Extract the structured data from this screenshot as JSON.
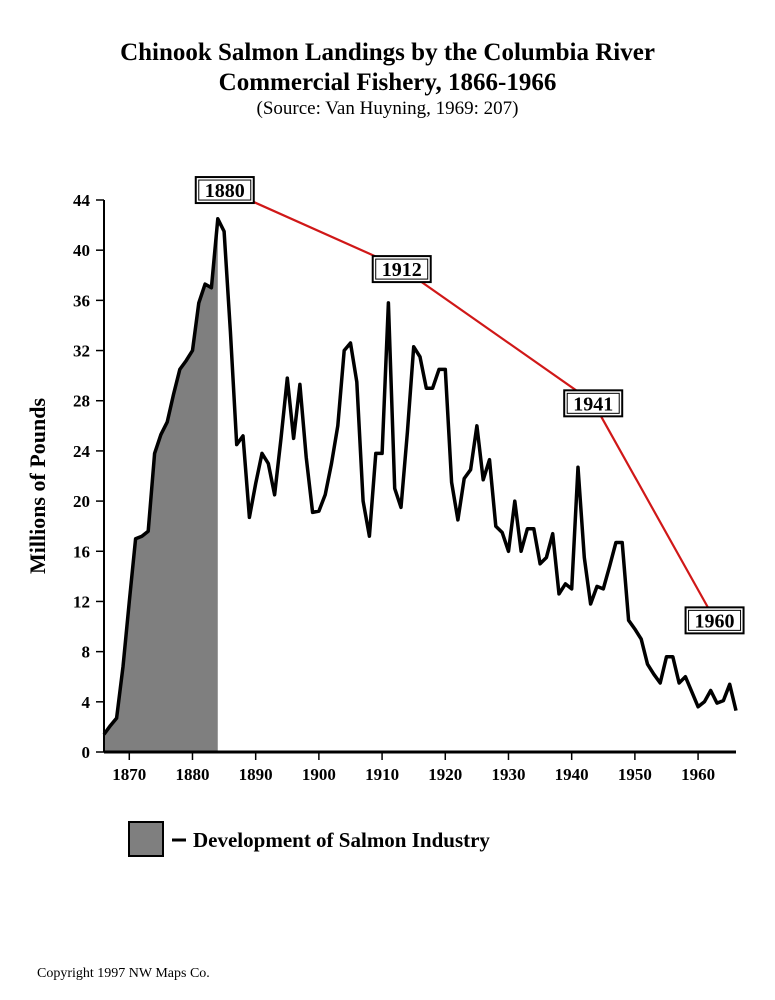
{
  "title_line1": "Chinook Salmon Landings by the Columbia River",
  "title_line2": "Commercial Fishery, 1866-1966",
  "source": "(Source:  Van Huyning, 1969: 207)",
  "copyright": "Copyright 1997 NW Maps Co.",
  "colors": {
    "line": "#000000",
    "shade": "#7f7f7f",
    "trend": "#d01818"
  },
  "chart_data": {
    "type": "line",
    "title": "Chinook Salmon Landings by the Columbia River Commercial Fishery, 1866-1966",
    "xlabel": "",
    "ylabel": "Millions of Pounds",
    "xlim": [
      1866,
      1966
    ],
    "ylim": [
      0,
      44
    ],
    "x_ticks": [
      1870,
      1880,
      1890,
      1900,
      1910,
      1920,
      1930,
      1940,
      1950,
      1960
    ],
    "y_ticks": [
      0,
      4,
      8,
      12,
      16,
      20,
      24,
      28,
      32,
      36,
      40,
      44
    ],
    "grid": false,
    "series": [
      {
        "x": [
          1866,
          1867,
          1868,
          1869,
          1870,
          1871,
          1872,
          1873,
          1874,
          1875,
          1876,
          1877,
          1878,
          1879,
          1880,
          1881,
          1882,
          1883,
          1884,
          1885,
          1886,
          1887,
          1888,
          1889,
          1890,
          1891,
          1892,
          1893,
          1894,
          1895,
          1896,
          1897,
          1898,
          1899,
          1900,
          1901,
          1902,
          1903,
          1904,
          1905,
          1906,
          1907,
          1908,
          1909,
          1910,
          1911,
          1912,
          1913,
          1914,
          1915,
          1916,
          1917,
          1918,
          1919,
          1920,
          1921,
          1922,
          1923,
          1924,
          1925,
          1926,
          1927,
          1928,
          1929,
          1930,
          1931,
          1932,
          1933,
          1934,
          1935,
          1936,
          1937,
          1938,
          1939,
          1940,
          1941,
          1942,
          1943,
          1944,
          1945,
          1946,
          1947,
          1948,
          1949,
          1950,
          1951,
          1952,
          1953,
          1954,
          1955,
          1956,
          1957,
          1958,
          1959,
          1960,
          1961,
          1962,
          1963,
          1964,
          1965,
          1966
        ],
        "values": [
          1.4,
          2.1,
          2.7,
          6.8,
          12,
          17,
          17.2,
          17.6,
          23.8,
          25.3,
          26.3,
          28.5,
          30.5,
          31.2,
          32,
          35.8,
          37.3,
          37,
          42.5,
          41.5,
          33.5,
          24.5,
          25.2,
          18.7,
          21.4,
          23.8,
          23,
          20.5,
          25,
          29.8,
          25,
          29.3,
          23.5,
          19.1,
          19.2,
          20.5,
          23,
          26,
          32,
          32.6,
          29.5,
          20,
          17.2,
          23.8,
          23.8,
          35.8,
          21,
          19.5,
          25.5,
          32.3,
          31.5,
          29,
          29,
          30.5,
          30.5,
          21.5,
          18.5,
          21.8,
          22.5,
          26,
          21.7,
          23.3,
          18,
          17.5,
          16,
          20,
          16,
          17.8,
          17.8,
          15,
          15.5,
          17.4,
          12.6,
          13.4,
          13,
          22.7,
          15.5,
          11.8,
          13.2,
          13,
          14.8,
          16.7,
          16.7,
          10.5,
          9.8,
          9,
          7,
          6.2,
          5.5,
          7.6,
          7.6,
          5.5,
          6,
          4.8,
          3.6,
          4,
          4.9,
          3.9,
          4.1,
          5.4,
          3.3
        ]
      }
    ],
    "shaded_region": {
      "label": "Development of Salmon Industry",
      "x_start": 1866,
      "x_end": 1884
    },
    "annotations": [
      {
        "label": "1880",
        "x": 1884,
        "y": 42.8
      },
      {
        "label": "1912",
        "x": 1912,
        "y": 36.5
      },
      {
        "label": "1941",
        "x": 1942.3,
        "y": 25.8
      },
      {
        "label": "1960",
        "x": 1961.5,
        "y": 8.5
      }
    ]
  }
}
